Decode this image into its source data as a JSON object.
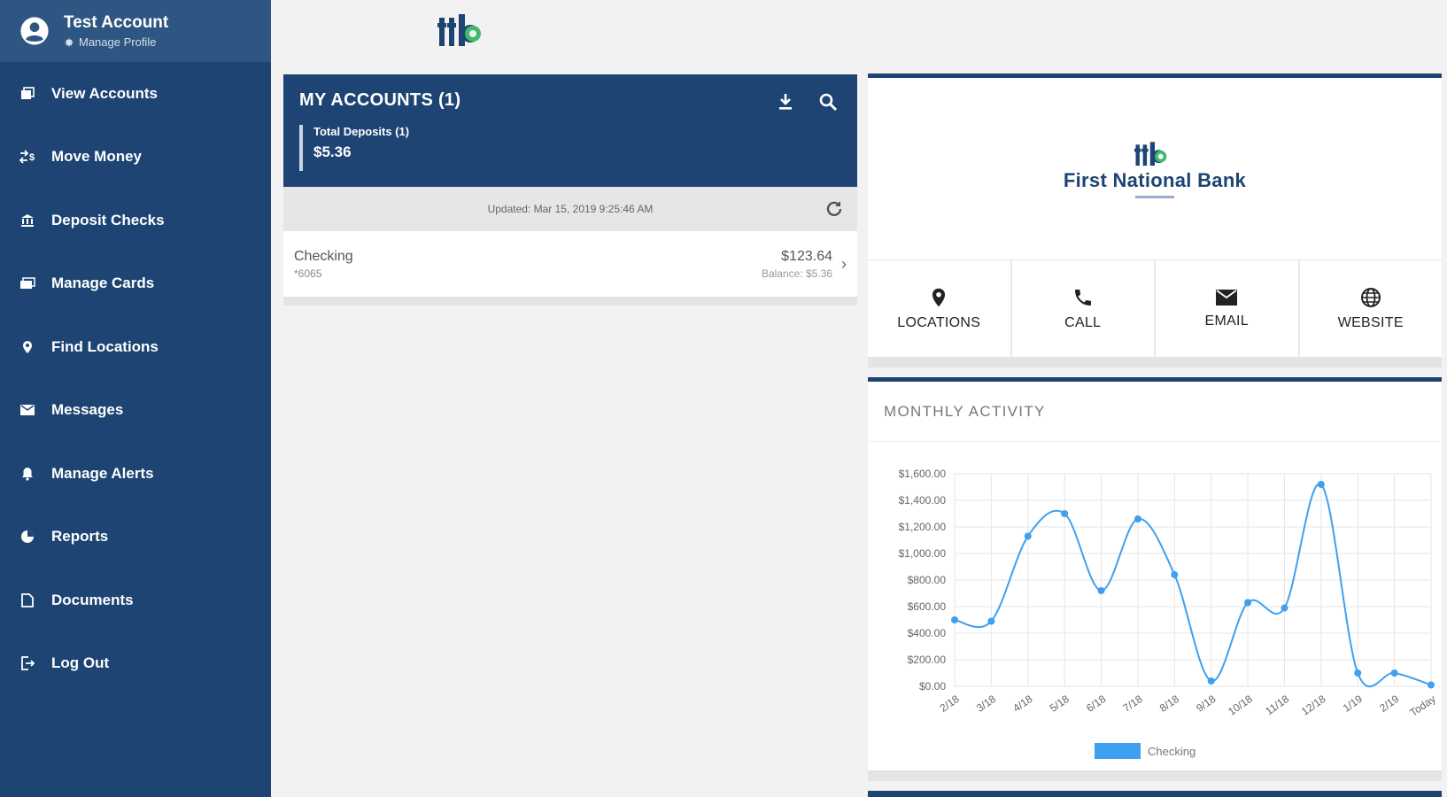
{
  "sidebar": {
    "profile": {
      "name": "Test Account",
      "manage": "Manage Profile"
    },
    "items": [
      {
        "label": "View Accounts",
        "icon": "accounts-icon"
      },
      {
        "label": "Move Money",
        "icon": "transfer-icon"
      },
      {
        "label": "Deposit Checks",
        "icon": "bank-icon"
      },
      {
        "label": "Manage Cards",
        "icon": "cards-icon"
      },
      {
        "label": "Find Locations",
        "icon": "location-pin-icon"
      },
      {
        "label": "Messages",
        "icon": "mail-icon"
      },
      {
        "label": "Manage Alerts",
        "icon": "bell-icon"
      },
      {
        "label": "Reports",
        "icon": "pie-chart-icon"
      },
      {
        "label": "Documents",
        "icon": "document-icon"
      },
      {
        "label": "Log Out",
        "icon": "logout-icon"
      }
    ]
  },
  "accounts": {
    "title": "MY ACCOUNTS (1)",
    "total_label": "Total Deposits (1)",
    "total_value": "$5.36",
    "updated": "Updated: Mar 15, 2019 9:25:46 AM",
    "rows": [
      {
        "name": "Checking",
        "number": "*6065",
        "amount": "$123.64",
        "balance": "Balance: $5.36"
      }
    ]
  },
  "bank": {
    "name": "First National Bank",
    "quick_links": [
      {
        "label": "LOCATIONS",
        "icon": "location-pin-icon"
      },
      {
        "label": "CALL",
        "icon": "phone-icon"
      },
      {
        "label": "EMAIL",
        "icon": "mail-icon"
      },
      {
        "label": "WEBSITE",
        "icon": "globe-icon"
      }
    ]
  },
  "activity": {
    "title": "MONTHLY ACTIVITY"
  },
  "colors": {
    "navy": "#1d4472",
    "line": "#3ea0ef",
    "logo_green": "#3dbb6a"
  },
  "chart_data": {
    "type": "line",
    "title": "",
    "xlabel": "",
    "ylabel": "",
    "categories": [
      "2/18",
      "3/18",
      "4/18",
      "5/18",
      "6/18",
      "7/18",
      "8/18",
      "9/18",
      "10/18",
      "11/18",
      "12/18",
      "1/19",
      "2/19",
      "Today"
    ],
    "y_ticks": [
      "$0.00",
      "$200.00",
      "$400.00",
      "$600.00",
      "$800.00",
      "$1,000.00",
      "$1,200.00",
      "$1,400.00",
      "$1,600.00"
    ],
    "ylim": [
      0,
      1600
    ],
    "grid": true,
    "legend_position": "bottom",
    "series": [
      {
        "name": "Checking",
        "values": [
          500,
          490,
          1130,
          1300,
          720,
          1260,
          840,
          40,
          630,
          590,
          1520,
          100,
          100,
          10
        ]
      }
    ]
  }
}
